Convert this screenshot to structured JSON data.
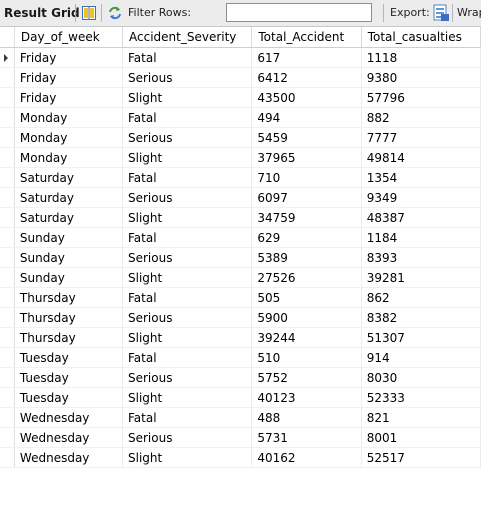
{
  "toolbar": {
    "title": "Result Grid",
    "filter_label": "Filter Rows:",
    "filter_value": "",
    "export_label": "Export:",
    "wrap_label": "Wrap"
  },
  "icons": {
    "grid": "grid-layout-icon",
    "refresh": "refresh-icon",
    "export": "export-file-icon"
  },
  "columns": [
    "Day_of_week",
    "Accident_Severity",
    "Total_Accident",
    "Total_casualties"
  ],
  "rows": [
    [
      "Friday",
      "Fatal",
      "617",
      "1118"
    ],
    [
      "Friday",
      "Serious",
      "6412",
      "9380"
    ],
    [
      "Friday",
      "Slight",
      "43500",
      "57796"
    ],
    [
      "Monday",
      "Fatal",
      "494",
      "882"
    ],
    [
      "Monday",
      "Serious",
      "5459",
      "7777"
    ],
    [
      "Monday",
      "Slight",
      "37965",
      "49814"
    ],
    [
      "Saturday",
      "Fatal",
      "710",
      "1354"
    ],
    [
      "Saturday",
      "Serious",
      "6097",
      "9349"
    ],
    [
      "Saturday",
      "Slight",
      "34759",
      "48387"
    ],
    [
      "Sunday",
      "Fatal",
      "629",
      "1184"
    ],
    [
      "Sunday",
      "Serious",
      "5389",
      "8393"
    ],
    [
      "Sunday",
      "Slight",
      "27526",
      "39281"
    ],
    [
      "Thursday",
      "Fatal",
      "505",
      "862"
    ],
    [
      "Thursday",
      "Serious",
      "5900",
      "8382"
    ],
    [
      "Thursday",
      "Slight",
      "39244",
      "51307"
    ],
    [
      "Tuesday",
      "Fatal",
      "510",
      "914"
    ],
    [
      "Tuesday",
      "Serious",
      "5752",
      "8030"
    ],
    [
      "Tuesday",
      "Slight",
      "40123",
      "52333"
    ],
    [
      "Wednesday",
      "Fatal",
      "488",
      "821"
    ],
    [
      "Wednesday",
      "Serious",
      "5731",
      "8001"
    ],
    [
      "Wednesday",
      "Slight",
      "40162",
      "52517"
    ]
  ],
  "current_row": 0,
  "colors": {
    "toolbar_bg": "#ececec",
    "grid_icon_blue": "#3b6fc2",
    "grid_icon_yellow": "#f0c419",
    "refresh_green": "#3c9a3c",
    "refresh_blue": "#3a7bd5"
  }
}
